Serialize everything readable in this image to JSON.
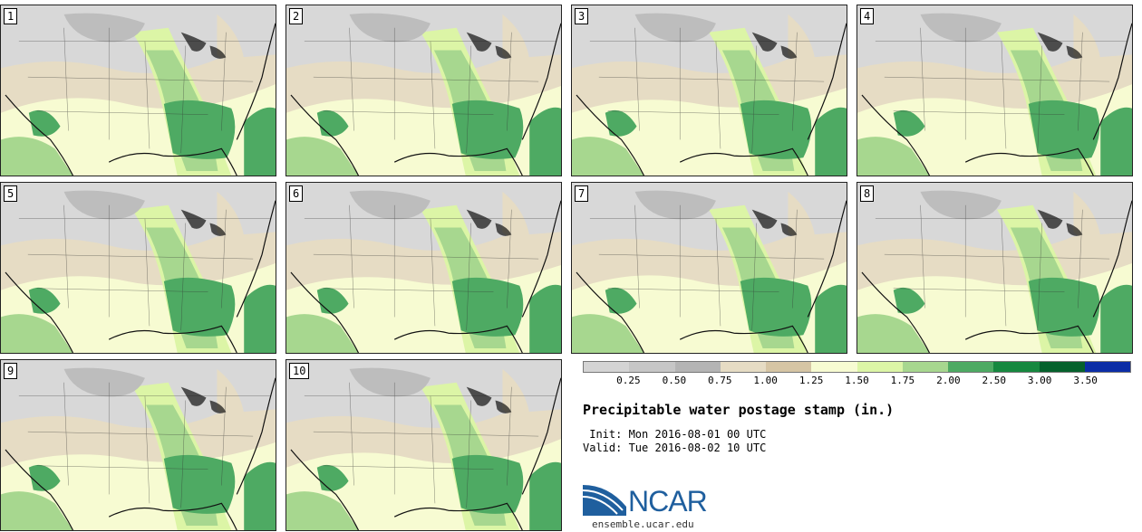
{
  "panels": [
    {
      "label": "1"
    },
    {
      "label": "2"
    },
    {
      "label": "3"
    },
    {
      "label": "4"
    },
    {
      "label": "5"
    },
    {
      "label": "6"
    },
    {
      "label": "7"
    },
    {
      "label": "8"
    },
    {
      "label": "9"
    },
    {
      "label": "10"
    }
  ],
  "legend": {
    "colors": [
      "#d4d4d4",
      "#c6c6c6",
      "#b4b4b4",
      "#e6dcc4",
      "#d6c5a4",
      "#f7fbd2",
      "#dcf5a6",
      "#a7d78f",
      "#4eaa63",
      "#16883f",
      "#05612c",
      "#0b2da6"
    ],
    "ticks": [
      "0.25",
      "0.50",
      "0.75",
      "1.00",
      "1.25",
      "1.50",
      "1.75",
      "2.00",
      "2.50",
      "3.00",
      "3.50"
    ]
  },
  "title": "Precipitable water postage stamp (in.)",
  "init": " Init: Mon 2016-08-01 00 UTC",
  "valid": "Valid: Tue 2016-08-02 10 UTC",
  "logo": {
    "text": "NCAR",
    "url": "ensemble.ucar.edu"
  }
}
